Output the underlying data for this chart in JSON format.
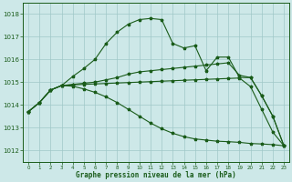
{
  "bg_color": "#cde8e8",
  "grid_color": "#a0c8c8",
  "line_color": "#1a5c1a",
  "xlabel": "Graphe pression niveau de la mer (hPa)",
  "xlabel_color": "#1a5c1a",
  "tick_color": "#1a5c1a",
  "ylim": [
    1011.5,
    1018.5
  ],
  "xlim": [
    -0.5,
    23.5
  ],
  "yticks": [
    1012,
    1013,
    1014,
    1015,
    1016,
    1017,
    1018
  ],
  "xticks": [
    0,
    1,
    2,
    3,
    4,
    5,
    6,
    7,
    8,
    9,
    10,
    11,
    12,
    13,
    14,
    15,
    16,
    17,
    18,
    19,
    20,
    21,
    22,
    23
  ],
  "series": [
    {
      "x": [
        0,
        1,
        2,
        3,
        4,
        5,
        6,
        7,
        8,
        9,
        10,
        11,
        12,
        13,
        14,
        15,
        16,
        17,
        18,
        19,
        20,
        21,
        22,
        23
      ],
      "y": [
        1013.7,
        1014.1,
        1014.65,
        1014.85,
        1015.25,
        1015.6,
        1016.0,
        1016.7,
        1017.2,
        1017.55,
        1017.75,
        1017.8,
        1017.75,
        1016.7,
        1016.5,
        1016.6,
        1015.5,
        1016.1,
        1016.1,
        1015.2,
        1015.2,
        1014.4,
        1013.5,
        1012.2
      ]
    },
    {
      "x": [
        0,
        1,
        2,
        3,
        4,
        5,
        6,
        7,
        8,
        9,
        10,
        11,
        12,
        13,
        14,
        15,
        16,
        17,
        18,
        19,
        20,
        21,
        22,
        23
      ],
      "y": [
        1013.7,
        1014.1,
        1014.65,
        1014.85,
        1014.9,
        1014.95,
        1015.0,
        1015.1,
        1015.2,
        1015.35,
        1015.45,
        1015.5,
        1015.55,
        1015.6,
        1015.65,
        1015.7,
        1015.75,
        1015.8,
        1015.85,
        1015.3,
        1015.2,
        1014.4,
        1013.5,
        1012.2
      ]
    },
    {
      "x": [
        0,
        1,
        2,
        3,
        4,
        5,
        6,
        7,
        8,
        9,
        10,
        11,
        12,
        13,
        14,
        15,
        16,
        17,
        18,
        19,
        20,
        21,
        22,
        23
      ],
      "y": [
        1013.7,
        1014.1,
        1014.65,
        1014.85,
        1014.88,
        1014.9,
        1014.92,
        1014.94,
        1014.96,
        1014.98,
        1015.0,
        1015.02,
        1015.04,
        1015.06,
        1015.08,
        1015.1,
        1015.12,
        1015.14,
        1015.16,
        1015.18,
        1014.8,
        1013.8,
        1012.8,
        1012.2
      ]
    },
    {
      "x": [
        0,
        1,
        2,
        3,
        4,
        5,
        6,
        7,
        8,
        9,
        10,
        11,
        12,
        13,
        14,
        15,
        16,
        17,
        18,
        19,
        20,
        21,
        22,
        23
      ],
      "y": [
        1013.7,
        1014.1,
        1014.65,
        1014.85,
        1014.82,
        1014.7,
        1014.55,
        1014.35,
        1014.1,
        1013.8,
        1013.5,
        1013.2,
        1012.95,
        1012.75,
        1012.6,
        1012.5,
        1012.45,
        1012.4,
        1012.38,
        1012.35,
        1012.3,
        1012.28,
        1012.25,
        1012.2
      ]
    }
  ]
}
